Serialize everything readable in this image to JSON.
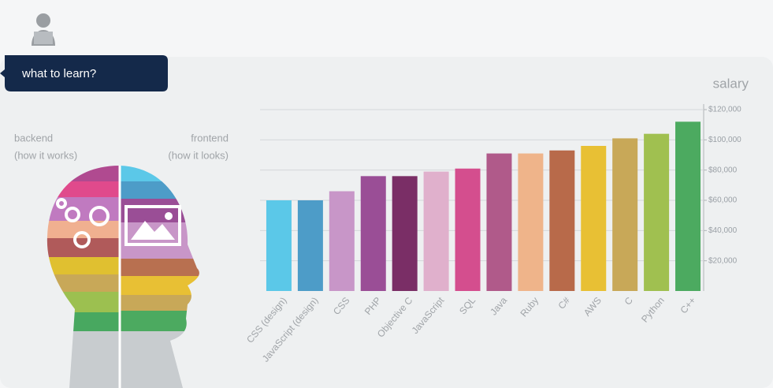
{
  "header": {
    "title": "what to learn?"
  },
  "left": {
    "backend": "backend",
    "backend_note": "(how it works)",
    "frontend": "frontend",
    "frontend_note": "(how it looks)"
  },
  "chart_data": {
    "type": "bar",
    "y_label": "salary",
    "categories": [
      "CSS (design)",
      "JavaScript (design)",
      "CSS",
      "PHP",
      "Objective C",
      "JavaScript",
      "SQL",
      "Java",
      "Ruby",
      "C#",
      "AWS",
      "C",
      "Python",
      "C++"
    ],
    "values": [
      60000,
      60000,
      66000,
      76000,
      76000,
      79000,
      81000,
      91000,
      91000,
      93000,
      96000,
      101000,
      104000,
      112000
    ],
    "colors": [
      "#5bc8e8",
      "#4d9cc8",
      "#c896c8",
      "#9a4e96",
      "#7a2e66",
      "#e0b0cc",
      "#d44e8e",
      "#b05a8a",
      "#efb48a",
      "#b86a4a",
      "#e8c034",
      "#c8a858",
      "#a0c050",
      "#4caa60"
    ],
    "ylim": [
      0,
      120000
    ],
    "yticks": [
      {
        "value": 20000,
        "label": "$20,000"
      },
      {
        "value": 40000,
        "label": "$40,000"
      },
      {
        "value": 60000,
        "label": "$60,000"
      },
      {
        "value": 80000,
        "label": "$80,000"
      },
      {
        "value": 100000,
        "label": "$100,000"
      },
      {
        "value": 120000,
        "label": "$120,000"
      }
    ],
    "grid": true
  }
}
